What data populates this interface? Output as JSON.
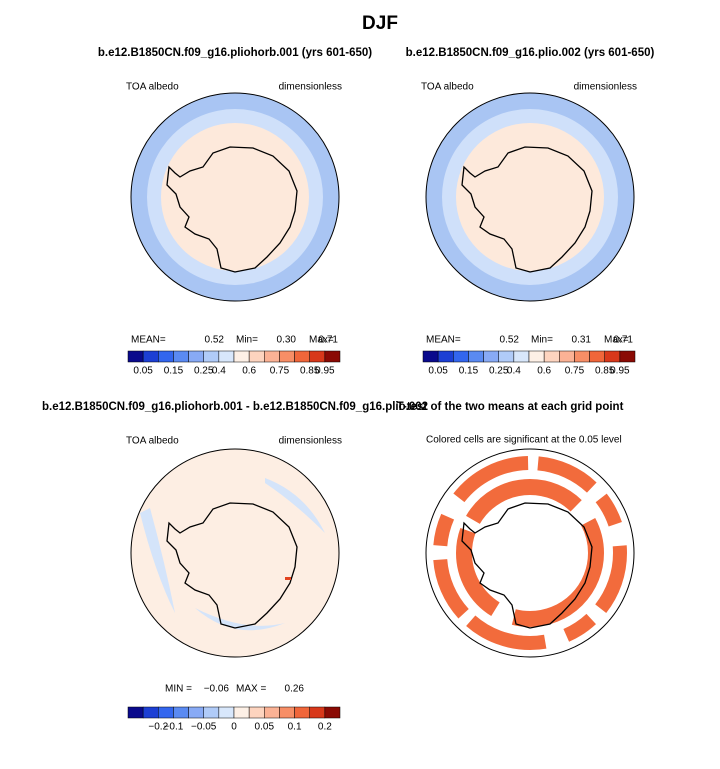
{
  "title": "DJF",
  "panels": [
    {
      "title": "b.e12.B1850CN.f09_g16.pliohorb.001 (yrs 601-650)",
      "left": "TOA albedo",
      "right": "dimensionless",
      "stats": [
        "MEAN=",
        "0.52",
        "Min=",
        "0.30",
        "Max=",
        "0.71"
      ],
      "colorbar": {
        "colors": [
          "#0a0a8c",
          "#1c3fd4",
          "#3366ee",
          "#5a8af2",
          "#88aaf5",
          "#b0cbf8",
          "#d8e7fb",
          "#fdf0e6",
          "#fdd4bf",
          "#fbb295",
          "#f78e66",
          "#f0663a",
          "#d8381a",
          "#8a0a04"
        ],
        "labels": [
          "0.05",
          "0.15",
          "0.25",
          "0.4",
          "0.6",
          "0.75",
          "0.85",
          "0.95"
        ]
      }
    },
    {
      "title": "b.e12.B1850CN.f09_g16.plio.002 (yrs 601-650)",
      "left": "TOA albedo",
      "right": "dimensionless",
      "stats": [
        "MEAN=",
        "0.52",
        "Min=",
        "0.31",
        "Max=",
        "0.71"
      ],
      "colorbar": {
        "colors": [
          "#0a0a8c",
          "#1c3fd4",
          "#3366ee",
          "#5a8af2",
          "#88aaf5",
          "#b0cbf8",
          "#d8e7fb",
          "#fdf0e6",
          "#fdd4bf",
          "#fbb295",
          "#f78e66",
          "#f0663a",
          "#d8381a",
          "#8a0a04"
        ],
        "labels": [
          "0.05",
          "0.15",
          "0.25",
          "0.4",
          "0.6",
          "0.75",
          "0.85",
          "0.95"
        ]
      }
    },
    {
      "title": "b.e12.B1850CN.f09_g16.pliohorb.001 - b.e12.B1850CN.f09_g16.plio.002",
      "left": "TOA albedo",
      "right": "dimensionless",
      "stats": [
        "MIN =",
        "−0.06",
        "MAX =",
        "0.26"
      ],
      "colorbar": {
        "colors": [
          "#0a0a8c",
          "#1c3fd4",
          "#3366ee",
          "#5a8af2",
          "#88aaf5",
          "#b0cbf8",
          "#d8e7fb",
          "#fdf0e6",
          "#fdd4bf",
          "#fbb295",
          "#f78e66",
          "#f0663a",
          "#d8381a",
          "#8a0a04"
        ],
        "labels": [
          "−0.2",
          "−0.1",
          "−0.05",
          "0",
          "0.05",
          "0.1",
          "0.2"
        ]
      }
    },
    {
      "title": "T-test of the two means at each grid point",
      "note": "Colored cells are significant at the 0.05 level"
    }
  ]
}
